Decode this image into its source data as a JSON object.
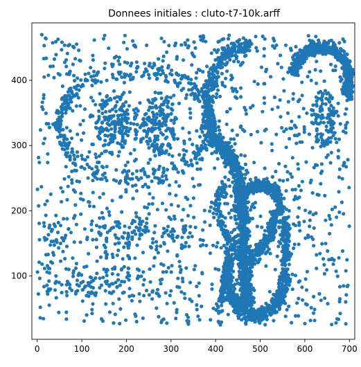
{
  "chart_data": {
    "type": "scatter",
    "title": "Donnees initiales : cluto-t7-10k.arff",
    "xlabel": "",
    "ylabel": "",
    "xlim": [
      -12,
      712
    ],
    "ylim": [
      3,
      488
    ],
    "xticks": [
      0,
      100,
      200,
      300,
      400,
      500,
      600,
      700
    ],
    "yticks": [
      100,
      200,
      300,
      400
    ],
    "grid": false,
    "legend": false,
    "marker_color": "#1f77b4",
    "structures": [
      {
        "shape": "ring",
        "center": [
          220,
          333
        ],
        "radius_x": [
          162,
          180
        ],
        "radius_y": [
          70,
          96
        ],
        "density": 0.33
      },
      {
        "shape": "ellipse",
        "center": [
          168,
          333
        ],
        "radius_x": 38,
        "radius_y": 48,
        "density": 0.4
      },
      {
        "shape": "ellipse",
        "center": [
          275,
          333
        ],
        "radius_x": 38,
        "radius_y": 48,
        "density": 0.4
      },
      {
        "shape": "line",
        "from": [
          162,
          333
        ],
        "to": [
          278,
          333
        ],
        "half_width": 3,
        "count": 24
      },
      {
        "shape": "line",
        "from": [
          220,
          308
        ],
        "to": [
          220,
          358
        ],
        "half_width": 3,
        "count": 12
      },
      {
        "shape": "rect",
        "x": [
          15,
          335
        ],
        "y": [
          140,
          180
        ],
        "density": 0.11
      },
      {
        "shape": "rect",
        "x": [
          15,
          335
        ],
        "y": [
          68,
          115
        ],
        "density": 0.11
      },
      {
        "shape": "line",
        "from": [
          155,
          87
        ],
        "to": [
          155,
          162
        ],
        "half_width": 3,
        "count": 16
      },
      {
        "shape": "line",
        "from": [
          205,
          87
        ],
        "to": [
          205,
          162
        ],
        "half_width": 3,
        "count": 16
      },
      {
        "shape": "line",
        "from": [
          230,
          162
        ],
        "to": [
          230,
          190
        ],
        "half_width": 3,
        "count": 8
      },
      {
        "shape": "arc",
        "center": [
          636,
          400
        ],
        "radius_x": 65,
        "radius_y": 50,
        "angles": [
          -30,
          170
        ],
        "half_width": 13,
        "count": 520
      },
      {
        "shape": "polyline",
        "points": [
          [
            380,
            330
          ],
          [
            400,
            305
          ],
          [
            430,
            285
          ],
          [
            452,
            250
          ],
          [
            462,
            200
          ],
          [
            462,
            150
          ],
          [
            465,
            100
          ],
          [
            470,
            55
          ]
        ],
        "half_width": 18,
        "count": 900
      },
      {
        "shape": "polyline",
        "points": [
          [
            382,
            335
          ],
          [
            385,
            380
          ],
          [
            400,
            420
          ],
          [
            430,
            445
          ],
          [
            470,
            455
          ]
        ],
        "half_width": 15,
        "count": 260
      },
      {
        "shape": "ellipse",
        "center": [
          643,
          340
        ],
        "radius_x": 30,
        "radius_y": 45,
        "density": 0.38
      },
      {
        "shape": "arc",
        "center": [
          500,
          205
        ],
        "radius_x": 45,
        "radius_y": 35,
        "angles": [
          -10,
          190
        ],
        "half_width": 12,
        "count": 330
      },
      {
        "shape": "polyline",
        "points": [
          [
            540,
            200
          ],
          [
            520,
            160
          ],
          [
            490,
            130
          ],
          [
            460,
            120
          ]
        ],
        "half_width": 15,
        "count": 240
      },
      {
        "shape": "polyline",
        "points": [
          [
            460,
            120
          ],
          [
            440,
            150
          ],
          [
            412,
            175
          ],
          [
            400,
            210
          ],
          [
            420,
            240
          ]
        ],
        "half_width": 12,
        "count": 150
      },
      {
        "shape": "arc",
        "center": [
          490,
          100
        ],
        "radius_x": 65,
        "radius_y": 60,
        "angles": [
          150,
          360
        ],
        "half_width": 14,
        "count": 600
      },
      {
        "shape": "polyline",
        "points": [
          [
            555,
            100
          ],
          [
            560,
            145
          ],
          [
            553,
            190
          ]
        ],
        "half_width": 12,
        "count": 150
      },
      {
        "shape": "polyline",
        "points": [
          [
            405,
            45
          ],
          [
            420,
            90
          ],
          [
            432,
            150
          ]
        ],
        "half_width": 10,
        "count": 80
      },
      {
        "shape": "noise",
        "x": [
          0,
          700
        ],
        "y": [
          25,
          470
        ],
        "count": 1200
      }
    ]
  }
}
